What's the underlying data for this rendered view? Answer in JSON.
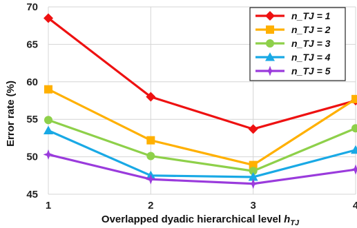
{
  "chart_data": {
    "type": "line",
    "title": "",
    "xlabel": "Overlapped dyadic hierarchical level",
    "xlabel_symbol": "h",
    "xlabel_subscript": "TJ",
    "ylabel": "Error rate (%)",
    "x": [
      1,
      2,
      3,
      4
    ],
    "x_tick_labels": [
      "1",
      "2",
      "3",
      "4"
    ],
    "ylim": [
      45,
      70
    ],
    "y_ticks": [
      45,
      50,
      55,
      60,
      65,
      70
    ],
    "y_tick_labels": [
      "45",
      "50",
      "55",
      "60",
      "65",
      "70"
    ],
    "grid": true,
    "legend_position": "top-right",
    "series": [
      {
        "name": "n_TJ = 1",
        "values": [
          68.5,
          58.0,
          53.7,
          57.5
        ],
        "color": "#ee1111",
        "marker": "diamond"
      },
      {
        "name": "n_TJ = 2",
        "values": [
          59.0,
          52.2,
          48.9,
          57.7
        ],
        "color": "#ffb000",
        "marker": "square"
      },
      {
        "name": "n_TJ = 3",
        "values": [
          54.9,
          50.1,
          48.1,
          53.8
        ],
        "color": "#8ed04a",
        "marker": "circle"
      },
      {
        "name": "n_TJ = 4",
        "values": [
          53.5,
          47.5,
          47.3,
          50.9
        ],
        "color": "#19a9e5",
        "marker": "triangle"
      },
      {
        "name": "n_TJ = 5",
        "values": [
          50.3,
          47.0,
          46.4,
          48.3
        ],
        "color": "#9a3bdc",
        "marker": "star"
      }
    ]
  }
}
